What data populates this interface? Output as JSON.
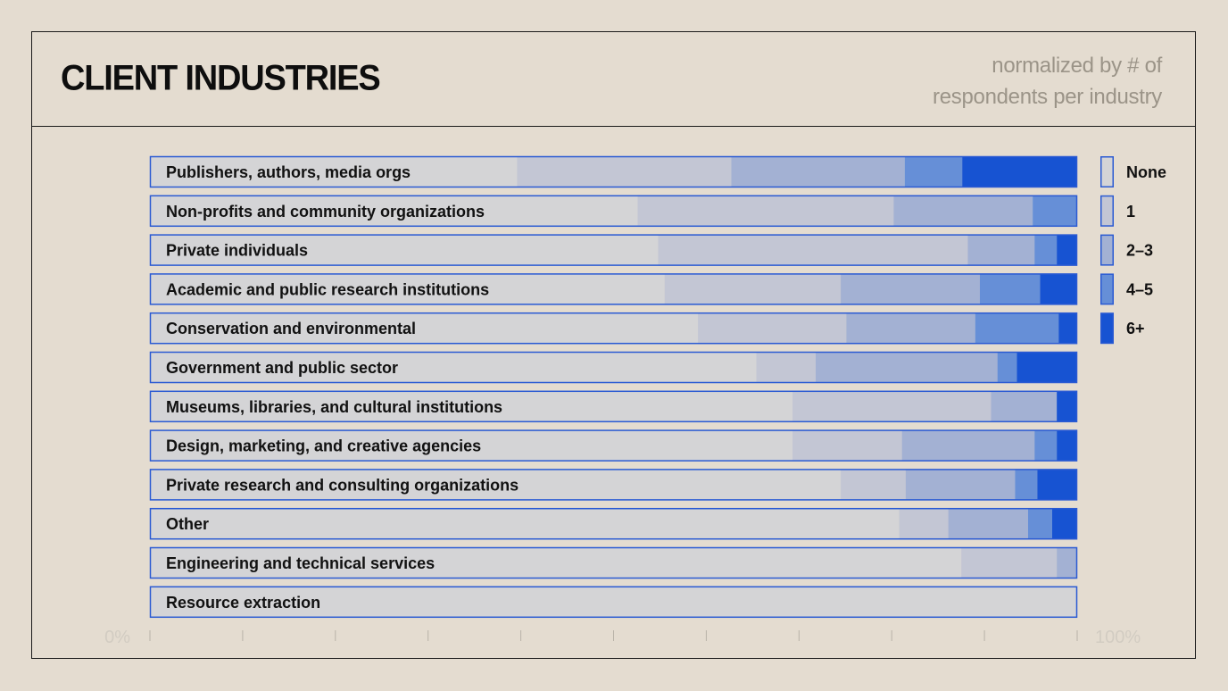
{
  "header": {
    "title": "CLIENT INDUSTRIES",
    "subtitle": "normalized by # of respondents per industry"
  },
  "colors": {
    "background": "#e4dcd0",
    "segments": [
      "#d4d4d6",
      "#c3c6d4",
      "#a3b1d3",
      "#668fd7",
      "#1753d2"
    ],
    "bar_border": "#2a5ad3"
  },
  "chart_data": {
    "type": "bar",
    "orientation": "horizontal",
    "stacked": true,
    "normalized": true,
    "categories": [
      "Publishers, authors, media orgs",
      "Non-profits and community organizations",
      "Private individuals",
      "Academic and public research institutions",
      "Conservation and environmental",
      "Government and public sector",
      "Museums, libraries, and cultural institutions",
      "Design, marketing, and creative agencies",
      "Private research and consulting organizations",
      "Other",
      "Engineering and technical services",
      "Resource extraction"
    ],
    "series": [
      {
        "name": "None",
        "values": [
          39.6,
          52.6,
          54.8,
          55.5,
          59.1,
          65.4,
          69.3,
          69.3,
          74.5,
          80.8,
          87.5,
          100
        ]
      },
      {
        "name": "1",
        "values": [
          23.1,
          27.6,
          33.4,
          19.0,
          16.0,
          6.4,
          21.4,
          11.8,
          7.0,
          5.3,
          10.3,
          0
        ]
      },
      {
        "name": "2–3",
        "values": [
          18.7,
          15.0,
          7.2,
          15.0,
          13.9,
          19.6,
          7.1,
          14.3,
          11.8,
          8.6,
          2.2,
          0
        ]
      },
      {
        "name": "4–5",
        "values": [
          6.2,
          4.8,
          2.4,
          6.5,
          9.0,
          2.1,
          0,
          2.4,
          2.4,
          2.6,
          0,
          0
        ]
      },
      {
        "name": "6+",
        "values": [
          12.4,
          0,
          2.2,
          4.0,
          2.0,
          6.5,
          2.2,
          2.2,
          4.3,
          2.7,
          0,
          0
        ]
      }
    ],
    "xlim": [
      0,
      100
    ],
    "x_tick_labels": {
      "start": "0%",
      "end": "100%"
    },
    "x_tick_count": 11,
    "legend": {
      "placement": "right",
      "entries": [
        "None",
        "1",
        "2–3",
        "4–5",
        "6+"
      ]
    }
  }
}
